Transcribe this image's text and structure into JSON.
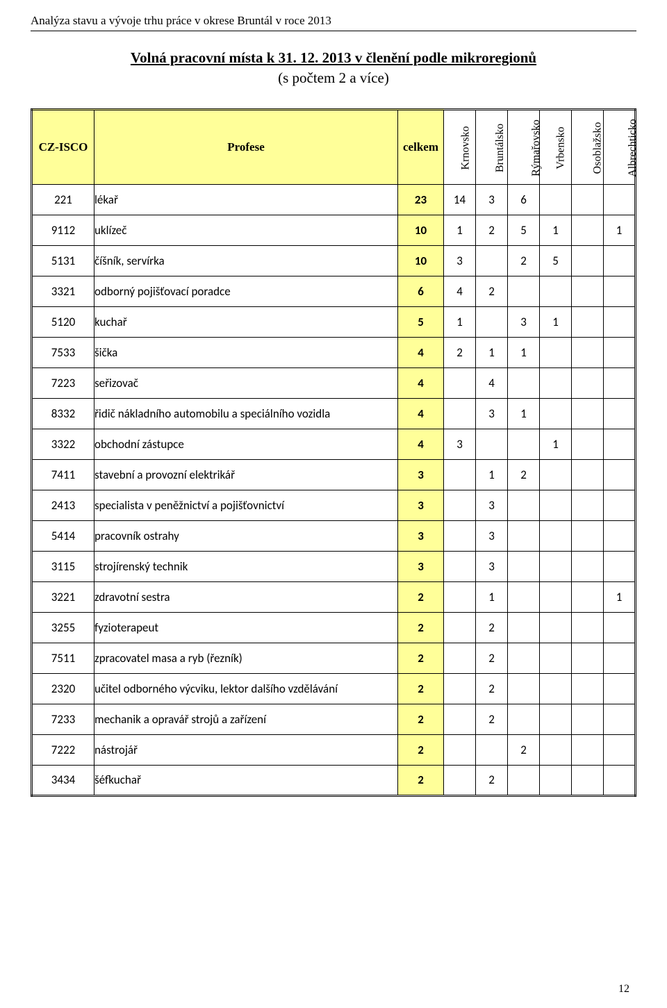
{
  "document_header": "Analýza stavu a vývoje trhu práce v okrese Bruntál v roce 2013",
  "title_line1": "Volná pracovní místa k 31. 12. 2013 v členění podle mikroregionů",
  "title_line2": "(s počtem 2 a více)",
  "page_number": "12",
  "table": {
    "columns": {
      "code": "CZ-ISCO",
      "profession": "Profese",
      "total": "celkem",
      "regions": [
        "Krnovsko",
        "Bruntálsko",
        "Rýmařovsko",
        "Vrbensko",
        "Osoblažsko",
        "Albrechticko"
      ]
    },
    "colors": {
      "highlight_bg": "#ffff99",
      "border": "#000000",
      "background": "#ffffff"
    },
    "rows": [
      {
        "code": "221",
        "prof": "lékař",
        "total": "23",
        "v": [
          "14",
          "3",
          "6",
          "",
          "",
          ""
        ]
      },
      {
        "code": "9112",
        "prof": "uklízeč",
        "total": "10",
        "v": [
          "1",
          "2",
          "5",
          "1",
          "",
          "1"
        ]
      },
      {
        "code": "5131",
        "prof": "číšník, servírka",
        "total": "10",
        "v": [
          "3",
          "",
          "2",
          "5",
          "",
          ""
        ]
      },
      {
        "code": "3321",
        "prof": "odborný pojišťovací poradce",
        "total": "6",
        "v": [
          "4",
          "2",
          "",
          "",
          "",
          ""
        ]
      },
      {
        "code": "5120",
        "prof": "kuchař",
        "total": "5",
        "v": [
          "1",
          "",
          "3",
          "1",
          "",
          ""
        ]
      },
      {
        "code": "7533",
        "prof": "šička",
        "total": "4",
        "v": [
          "2",
          "1",
          "1",
          "",
          "",
          ""
        ]
      },
      {
        "code": "7223",
        "prof": "seřizovač",
        "total": "4",
        "v": [
          "",
          "4",
          "",
          "",
          "",
          ""
        ]
      },
      {
        "code": "8332",
        "prof": "řidič nákladního automobilu a speciálního vozidla",
        "total": "4",
        "v": [
          "",
          "3",
          "1",
          "",
          "",
          ""
        ]
      },
      {
        "code": "3322",
        "prof": "obchodní zástupce",
        "total": "4",
        "v": [
          "3",
          "",
          "",
          "1",
          "",
          ""
        ]
      },
      {
        "code": "7411",
        "prof": "stavební a provozní elektrikář",
        "total": "3",
        "v": [
          "",
          "1",
          "2",
          "",
          "",
          ""
        ]
      },
      {
        "code": "2413",
        "prof": "specialista v peněžnictví a pojišťovnictví",
        "total": "3",
        "v": [
          "",
          "3",
          "",
          "",
          "",
          ""
        ]
      },
      {
        "code": "5414",
        "prof": "pracovník ostrahy",
        "total": "3",
        "v": [
          "",
          "3",
          "",
          "",
          "",
          ""
        ]
      },
      {
        "code": "3115",
        "prof": "strojírenský technik",
        "total": "3",
        "v": [
          "",
          "3",
          "",
          "",
          "",
          ""
        ]
      },
      {
        "code": "3221",
        "prof": "zdravotní sestra",
        "total": "2",
        "v": [
          "",
          "1",
          "",
          "",
          "",
          "1"
        ]
      },
      {
        "code": "3255",
        "prof": "fyzioterapeut",
        "total": "2",
        "v": [
          "",
          "2",
          "",
          "",
          "",
          ""
        ]
      },
      {
        "code": "7511",
        "prof": "zpracovatel masa a ryb (řezník)",
        "total": "2",
        "v": [
          "",
          "2",
          "",
          "",
          "",
          ""
        ]
      },
      {
        "code": "2320",
        "prof": "učitel odborného výcviku, lektor dalšího vzdělávání",
        "total": "2",
        "v": [
          "",
          "2",
          "",
          "",
          "",
          ""
        ]
      },
      {
        "code": "7233",
        "prof": "mechanik a opravář strojů a zařízení",
        "total": "2",
        "v": [
          "",
          "2",
          "",
          "",
          "",
          ""
        ]
      },
      {
        "code": "7222",
        "prof": "nástrojář",
        "total": "2",
        "v": [
          "",
          "",
          "2",
          "",
          "",
          ""
        ]
      },
      {
        "code": "3434",
        "prof": "šéfkuchař",
        "total": "2",
        "v": [
          "",
          "2",
          "",
          "",
          "",
          ""
        ]
      }
    ]
  }
}
